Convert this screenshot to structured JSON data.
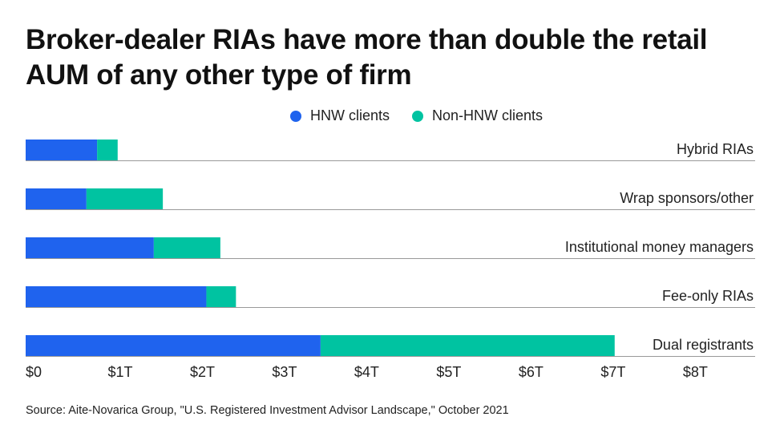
{
  "chart_data": {
    "type": "stacked_barh",
    "title": "Broker-dealer RIAs have more than double the retail AUM of any other type of firm",
    "categories": [
      "Hybrid RIAs",
      "Wrap sponsors/other",
      "Institutional money managers",
      "Fee-only RIAs",
      "Dual registrants"
    ],
    "series": [
      {
        "name": "HNW clients",
        "color": "#1f63ee",
        "values": [
          0.87,
          0.74,
          1.56,
          2.2,
          3.59
        ]
      },
      {
        "name": "Non-HNW clients",
        "color": "#00c3a1",
        "values": [
          0.25,
          0.93,
          0.81,
          0.36,
          3.58
        ]
      }
    ],
    "xlim": [
      0,
      8.88
    ],
    "xticks": [
      {
        "value": 0,
        "label": "$0"
      },
      {
        "value": 1,
        "label": "$1T"
      },
      {
        "value": 2,
        "label": "$2T"
      },
      {
        "value": 3,
        "label": "$3T"
      },
      {
        "value": 4,
        "label": "$4T"
      },
      {
        "value": 5,
        "label": "$5T"
      },
      {
        "value": 6,
        "label": "$6T"
      },
      {
        "value": 7,
        "label": "$7T"
      },
      {
        "value": 8,
        "label": "$8T"
      }
    ],
    "legend": "top",
    "source": "Source: Aite-Novarica Group, \"U.S. Registered Investment Advisor Landscape,\" October 2021"
  }
}
